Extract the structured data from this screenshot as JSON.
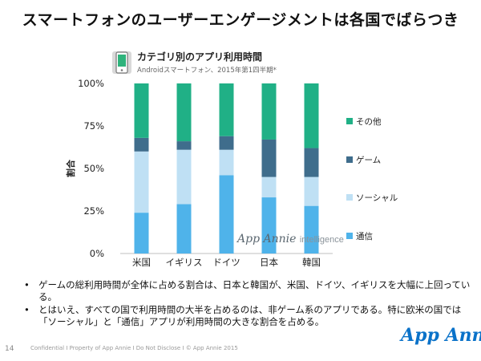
{
  "slide": {
    "title": "スマートフォンのユーザーエンゲージメントは各国でばらつき",
    "page_number": "14",
    "footer": "Confidential  I  Property of App Annie  I  Do Not Disclose  I  © App Annie 2015",
    "logo": "App Annie"
  },
  "watermark": {
    "brand": "App Annie",
    "suffix": "intelligence"
  },
  "bullets": [
    "ゲームの総利用時間が全体に占める割合は、日本と韓国が、米国、ドイツ、イギリスを大幅に上回っている。",
    "とはいえ、すべての国で利用時間の大半を占めるのは、非ゲーム系のアプリである。特に欧米の国では「ソーシャル」と「通信」アプリが利用時間の大きな割合を占める。"
  ],
  "bullet_symbol": "•",
  "chart_data": {
    "type": "bar",
    "stacked": true,
    "title": "カテゴリ別のアプリ利用時間",
    "subtitle": "Androidスマートフォン、2015年第1四半期*",
    "xlabel": "",
    "ylabel": "割合",
    "ylim": [
      0,
      100
    ],
    "yticks": [
      "0%",
      "25%",
      "50%",
      "75%",
      "100%"
    ],
    "legend_position": "right",
    "categories": [
      "米国",
      "イギリス",
      "ドイツ",
      "日本",
      "韓国"
    ],
    "series": [
      {
        "name": "通信",
        "color": "#4fb3ea",
        "values": [
          24,
          29,
          46,
          33,
          28
        ]
      },
      {
        "name": "ソーシャル",
        "color": "#bfe0f4",
        "values": [
          36,
          32,
          15,
          12,
          17
        ]
      },
      {
        "name": "ゲーム",
        "color": "#3f6d8c",
        "values": [
          8,
          5,
          8,
          22,
          17
        ]
      },
      {
        "name": "その他",
        "color": "#20b086",
        "values": [
          32,
          34,
          31,
          33,
          38
        ]
      }
    ]
  }
}
